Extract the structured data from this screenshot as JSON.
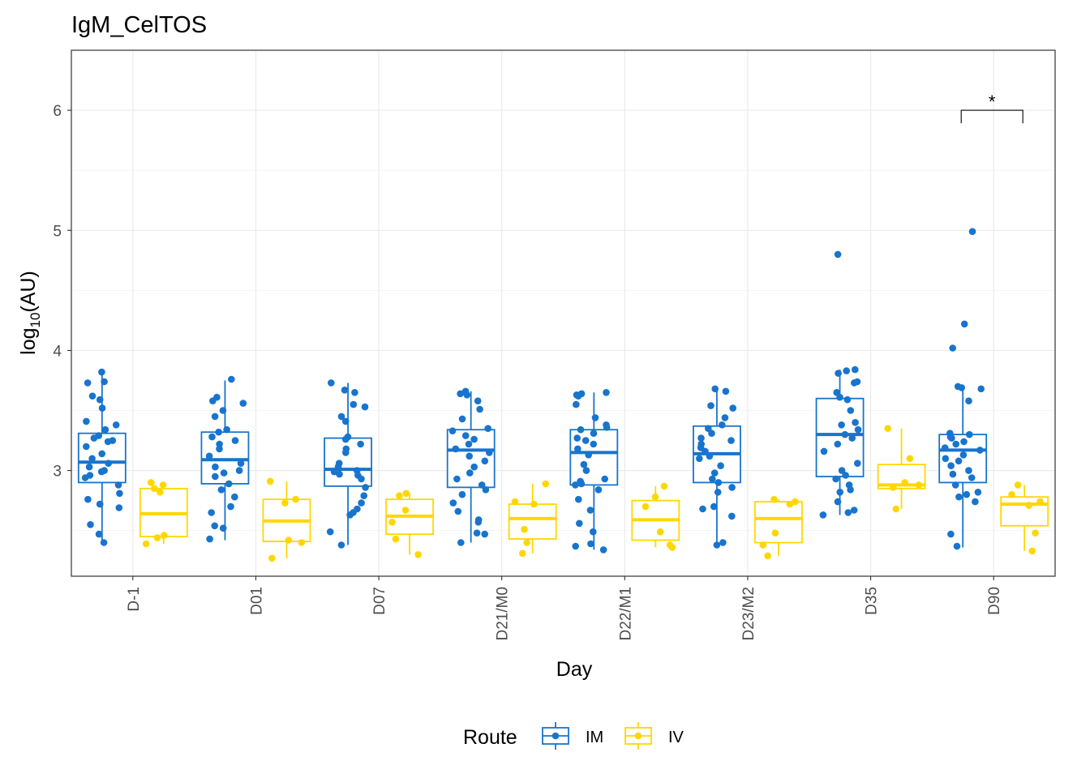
{
  "chart_data": {
    "type": "box",
    "title": "IgM_CelTOS",
    "xlabel": "Day",
    "ylabel_main": "log",
    "ylabel_sub": "10",
    "ylabel_tail": "(AU)",
    "ylim": [
      2.12,
      6.5
    ],
    "yticks": [
      3,
      4,
      5,
      6
    ],
    "ytick_labels": [
      "3",
      "4",
      "5",
      "6"
    ],
    "categories": [
      "D-1",
      "D01",
      "D07",
      "D21/M0",
      "D22/M1",
      "D23/M2",
      "D35",
      "D90"
    ],
    "legend": {
      "title": "Route",
      "position": "bottom"
    },
    "grid": true,
    "series": [
      {
        "name": "IM",
        "color": "#1874CD",
        "boxes": [
          {
            "lo": 2.4,
            "q1": 2.9,
            "median": 3.07,
            "q3": 3.31,
            "hi": 3.82
          },
          {
            "lo": 2.42,
            "q1": 2.89,
            "median": 3.09,
            "q3": 3.32,
            "hi": 3.75
          },
          {
            "lo": 2.38,
            "q1": 2.87,
            "median": 3.01,
            "q3": 3.27,
            "hi": 3.73
          },
          {
            "lo": 2.4,
            "q1": 2.86,
            "median": 3.17,
            "q3": 3.34,
            "hi": 3.66
          },
          {
            "lo": 2.34,
            "q1": 2.88,
            "median": 3.15,
            "q3": 3.34,
            "hi": 3.65
          },
          {
            "lo": 2.38,
            "q1": 2.9,
            "median": 3.14,
            "q3": 3.37,
            "hi": 3.68
          },
          {
            "lo": 2.63,
            "q1": 2.95,
            "median": 3.3,
            "q3": 3.6,
            "hi": 3.84
          },
          {
            "lo": 2.36,
            "q1": 2.9,
            "median": 3.17,
            "q3": 3.3,
            "hi": 3.69
          }
        ],
        "outliers": [
          [],
          [],
          [],
          [],
          [],
          [],
          [
            4.8
          ],
          [
            4.99,
            4.22,
            4.02
          ]
        ],
        "points": [
          [
            3.82,
            3.74,
            3.73,
            3.62,
            3.59,
            3.52,
            3.41,
            3.38,
            3.34,
            3.29,
            3.27,
            3.25,
            3.24,
            3.2,
            3.14,
            3.1,
            3.06,
            3.03,
            3.0,
            2.99,
            2.96,
            2.94,
            2.88,
            2.81,
            2.76,
            2.72,
            2.69,
            2.55,
            2.47,
            2.4
          ],
          [
            3.76,
            3.61,
            3.58,
            3.56,
            3.5,
            3.45,
            3.34,
            3.32,
            3.28,
            3.25,
            3.22,
            3.18,
            3.12,
            3.06,
            3.03,
            3.0,
            2.98,
            2.95,
            2.89,
            2.84,
            2.78,
            2.7,
            2.65,
            2.54,
            2.52,
            2.43
          ],
          [
            3.73,
            3.67,
            3.65,
            3.55,
            3.53,
            3.45,
            3.41,
            3.28,
            3.26,
            3.22,
            3.18,
            3.15,
            3.06,
            3.03,
            3.0,
            2.99,
            2.97,
            2.96,
            2.93,
            2.86,
            2.79,
            2.73,
            2.68,
            2.65,
            2.63,
            2.49,
            2.38
          ],
          [
            3.66,
            3.64,
            3.63,
            3.58,
            3.51,
            3.43,
            3.35,
            3.33,
            3.29,
            3.26,
            3.22,
            3.18,
            3.15,
            3.12,
            3.08,
            3.03,
            2.98,
            2.93,
            2.88,
            2.84,
            2.8,
            2.73,
            2.66,
            2.59,
            2.57,
            2.48,
            2.47,
            2.4
          ],
          [
            3.65,
            3.64,
            3.63,
            3.62,
            3.55,
            3.44,
            3.38,
            3.36,
            3.34,
            3.31,
            3.27,
            3.25,
            3.22,
            3.18,
            3.13,
            3.05,
            3.0,
            2.93,
            2.91,
            2.89,
            2.88,
            2.84,
            2.76,
            2.67,
            2.56,
            2.49,
            2.39,
            2.37,
            2.34
          ],
          [
            3.68,
            3.66,
            3.54,
            3.52,
            3.44,
            3.38,
            3.35,
            3.31,
            3.27,
            3.25,
            3.22,
            3.19,
            3.16,
            3.12,
            3.1,
            3.04,
            2.98,
            2.93,
            2.9,
            2.86,
            2.82,
            2.7,
            2.68,
            2.62,
            2.4,
            2.38
          ],
          [
            3.84,
            3.83,
            3.81,
            3.74,
            3.73,
            3.65,
            3.61,
            3.59,
            3.5,
            3.4,
            3.38,
            3.34,
            3.3,
            3.27,
            3.22,
            3.16,
            3.06,
            3.0,
            2.96,
            2.93,
            2.88,
            2.84,
            2.82,
            2.74,
            2.67,
            2.65,
            2.63
          ],
          [
            3.7,
            3.69,
            3.68,
            3.58,
            3.31,
            3.3,
            3.28,
            3.27,
            3.24,
            3.22,
            3.19,
            3.17,
            3.13,
            3.1,
            3.08,
            3.04,
            3.0,
            2.97,
            2.94,
            2.88,
            2.82,
            2.8,
            2.78,
            2.74,
            2.47,
            2.37
          ]
        ]
      },
      {
        "name": "IV",
        "color": "#FFD700",
        "boxes": [
          {
            "lo": 2.39,
            "q1": 2.45,
            "median": 2.64,
            "q3": 2.85,
            "hi": 2.9
          },
          {
            "lo": 2.27,
            "q1": 2.41,
            "median": 2.58,
            "q3": 2.76,
            "hi": 2.91
          },
          {
            "lo": 2.3,
            "q1": 2.47,
            "median": 2.62,
            "q3": 2.76,
            "hi": 2.81
          },
          {
            "lo": 2.31,
            "q1": 2.43,
            "median": 2.6,
            "q3": 2.72,
            "hi": 2.89
          },
          {
            "lo": 2.36,
            "q1": 2.42,
            "median": 2.59,
            "q3": 2.75,
            "hi": 2.87
          },
          {
            "lo": 2.29,
            "q1": 2.4,
            "median": 2.6,
            "q3": 2.74,
            "hi": 2.76
          },
          {
            "lo": 2.68,
            "q1": 2.85,
            "median": 2.88,
            "q3": 3.05,
            "hi": 3.35
          },
          {
            "lo": 2.33,
            "q1": 2.54,
            "median": 2.72,
            "q3": 2.78,
            "hi": 2.88
          }
        ],
        "outliers": [
          [],
          [],
          [],
          [],
          [],
          [],
          [],
          []
        ],
        "points": [
          [
            2.9,
            2.88,
            2.85,
            2.82,
            2.46,
            2.44,
            2.39
          ],
          [
            2.91,
            2.76,
            2.73,
            2.42,
            2.4,
            2.27
          ],
          [
            2.81,
            2.79,
            2.67,
            2.57,
            2.43,
            2.3
          ],
          [
            2.89,
            2.74,
            2.72,
            2.51,
            2.4,
            2.31
          ],
          [
            2.87,
            2.78,
            2.7,
            2.49,
            2.38,
            2.36
          ],
          [
            2.76,
            2.74,
            2.72,
            2.48,
            2.38,
            2.29
          ],
          [
            3.35,
            3.1,
            2.9,
            2.88,
            2.86,
            2.68
          ],
          [
            2.88,
            2.8,
            2.74,
            2.71,
            2.48,
            2.33
          ]
        ]
      }
    ],
    "annotations": [
      {
        "category": "D90",
        "label": "*",
        "bracket_y": 6.0
      }
    ]
  }
}
